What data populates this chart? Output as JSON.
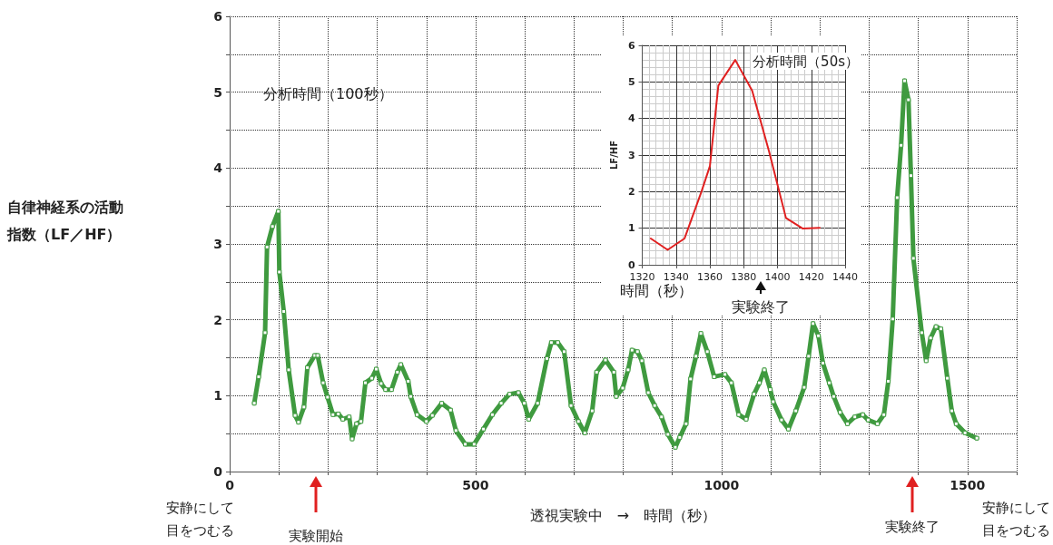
{
  "chart_data": [
    {
      "type": "line",
      "title": "分析時間（100秒）",
      "xlabel": "透視実験中　→　時間（秒）",
      "ylabel": "自律神経系の活動指数（LF／HF）",
      "series": [
        {
          "color": "#3f9a3f",
          "x": [
            50,
            59,
            72,
            76,
            87,
            99,
            101,
            110,
            120,
            133,
            140,
            151,
            158,
            173,
            179,
            190,
            199,
            210,
            221,
            230,
            243,
            249,
            258,
            267,
            276,
            289,
            298,
            308,
            317,
            329,
            341,
            348,
            363,
            368,
            381,
            400,
            412,
            431,
            449,
            460,
            479,
            497,
            516,
            534,
            552,
            569,
            587,
            599,
            608,
            626,
            645,
            654,
            667,
            680,
            694,
            709,
            722,
            737,
            746,
            764,
            781,
            786,
            799,
            810,
            818,
            829,
            838,
            851,
            864,
            878,
            891,
            906,
            915,
            928,
            937,
            948,
            958,
            971,
            985,
            1007,
            1020,
            1035,
            1050,
            1066,
            1077,
            1087,
            1099,
            1105,
            1122,
            1136,
            1151,
            1168,
            1177,
            1186,
            1197,
            1206,
            1219,
            1228,
            1241,
            1256,
            1271,
            1287,
            1298,
            1317,
            1330,
            1339,
            1348,
            1357,
            1365,
            1372,
            1380,
            1385,
            1390,
            1407,
            1416,
            1425,
            1436,
            1446,
            1459,
            1468,
            1477,
            1495,
            1519
          ],
          "values": [
            0.9,
            1.25,
            1.83,
            2.96,
            3.23,
            3.43,
            2.63,
            2.11,
            1.34,
            0.74,
            0.65,
            0.85,
            1.37,
            1.53,
            1.53,
            1.17,
            0.98,
            0.75,
            0.76,
            0.69,
            0.72,
            0.43,
            0.63,
            0.66,
            1.17,
            1.23,
            1.35,
            1.16,
            1.08,
            1.08,
            1.31,
            1.41,
            1.19,
            0.99,
            0.75,
            0.66,
            0.74,
            0.9,
            0.81,
            0.54,
            0.36,
            0.36,
            0.56,
            0.75,
            0.9,
            1.02,
            1.04,
            0.9,
            0.69,
            0.9,
            1.49,
            1.7,
            1.7,
            1.58,
            0.87,
            0.66,
            0.51,
            0.8,
            1.31,
            1.47,
            1.31,
            0.99,
            1.1,
            1.34,
            1.6,
            1.58,
            1.46,
            1.04,
            0.87,
            0.72,
            0.49,
            0.32,
            0.45,
            0.63,
            1.22,
            1.52,
            1.82,
            1.58,
            1.25,
            1.28,
            1.17,
            0.75,
            0.69,
            1.02,
            1.17,
            1.34,
            1.08,
            0.92,
            0.68,
            0.56,
            0.8,
            1.11,
            1.52,
            1.95,
            1.79,
            1.43,
            1.17,
            0.99,
            0.78,
            0.63,
            0.72,
            0.75,
            0.68,
            0.63,
            0.75,
            1.19,
            2.01,
            3.61,
            4.3,
            5.15,
            4.9,
            3.9,
            2.81,
            1.83,
            1.46,
            1.76,
            1.91,
            1.88,
            1.23,
            0.8,
            0.63,
            0.51,
            0.44
          ]
        }
      ],
      "xlim": [
        0,
        1600
      ],
      "xticks": [
        0,
        {
          "value": 100,
          "label": null
        },
        {
          "value": 200,
          "label": null
        },
        {
          "value": 300,
          "label": null
        },
        {
          "value": 400,
          "label": null
        },
        500,
        {
          "value": 600,
          "label": null
        },
        {
          "value": 700,
          "label": null
        },
        {
          "value": 800,
          "label": null
        },
        {
          "value": 900,
          "label": null
        },
        1000,
        {
          "value": 1100,
          "label": null
        },
        {
          "value": 1200,
          "label": null
        },
        {
          "value": 1300,
          "label": null
        },
        {
          "value": 1400,
          "label": null
        },
        1500,
        {
          "value": 1600,
          "label": null
        }
      ],
      "ylim": [
        0,
        6
      ],
      "yticks": [
        0,
        {
          "value": 0.5,
          "label": null
        },
        1,
        {
          "value": 1.5,
          "label": null
        },
        2,
        {
          "value": 2.5,
          "label": null
        },
        3,
        {
          "value": 3.5,
          "label": null
        },
        4,
        {
          "value": 4.5,
          "label": null
        },
        5,
        {
          "value": 5.5,
          "label": null
        },
        6
      ],
      "grid": true,
      "marker": "square",
      "line_style": "solid",
      "annotations": [
        "安静にして目をつむる",
        "実験開始",
        "実験終了",
        "安静にして目をつむる"
      ]
    },
    {
      "type": "line",
      "title": "分析時間（50s）",
      "xlabel": "時間（秒）",
      "ylabel": "LF/HF",
      "series": [
        {
          "color": "#e02020",
          "x": [
            1325,
            1335,
            1345,
            1355,
            1360,
            1365,
            1375,
            1385,
            1395,
            1405,
            1415,
            1425
          ],
          "values": [
            0.72,
            0.41,
            0.72,
            2.0,
            2.7,
            4.9,
            5.6,
            4.76,
            3.1,
            1.28,
            0.99,
            1.01
          ]
        }
      ],
      "xlim": [
        1320,
        1440
      ],
      "xticks": [
        1320,
        1340,
        1360,
        1380,
        1400,
        1420,
        1440
      ],
      "ylim": [
        0,
        6
      ],
      "yticks": [
        0,
        1,
        2,
        3,
        4,
        5,
        6
      ],
      "grid": true,
      "marker": "none",
      "line_style": "solid",
      "annotations": [
        "実験終了"
      ]
    }
  ]
}
